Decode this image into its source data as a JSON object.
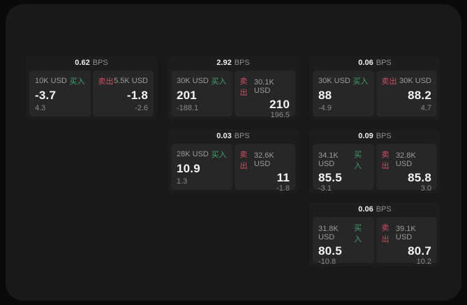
{
  "theme": {
    "page_bg": "#0a0a0a",
    "panel_bg": "#191919",
    "card_bg": "#1d1d1d",
    "tile_bg": "#272727",
    "buy_color": "#3fa169",
    "sell_color": "#cb5065"
  },
  "labels": {
    "bps_unit": "BPS",
    "buy": "买入",
    "sell": "卖出"
  },
  "cards": [
    {
      "bps": "0.62",
      "col": 0,
      "row": 0,
      "buy": {
        "amount": "10K USD",
        "price": "-3.7",
        "delta": "4.3"
      },
      "sell": {
        "amount": "5.5K USD",
        "price": "-1.8",
        "delta": "-2.6"
      }
    },
    {
      "bps": "2.92",
      "col": 1,
      "row": 0,
      "buy": {
        "amount": "30K USD",
        "price": "201",
        "delta": "-188.1"
      },
      "sell": {
        "amount": "30.1K USD",
        "price": "210",
        "delta": "196.5"
      }
    },
    {
      "bps": "0.06",
      "col": 2,
      "row": 0,
      "buy": {
        "amount": "30K USD",
        "price": "88",
        "delta": "-4.9"
      },
      "sell": {
        "amount": "30K USD",
        "price": "88.2",
        "delta": "4.7"
      }
    },
    {
      "bps": "0.03",
      "col": 1,
      "row": 1,
      "buy": {
        "amount": "28K USD",
        "price": "10.9",
        "delta": "1.3"
      },
      "sell": {
        "amount": "32.6K USD",
        "price": "11",
        "delta": "-1.8"
      }
    },
    {
      "bps": "0.09",
      "col": 2,
      "row": 1,
      "buy": {
        "amount": "34.1K USD",
        "price": "85.5",
        "delta": "-3.1"
      },
      "sell": {
        "amount": "32.8K USD",
        "price": "85.8",
        "delta": "3.0"
      }
    },
    {
      "bps": "0.06",
      "col": 2,
      "row": 2,
      "buy": {
        "amount": "31.8K USD",
        "price": "80.5",
        "delta": "-10.8"
      },
      "sell": {
        "amount": "39.1K USD",
        "price": "80.7",
        "delta": "10.2"
      }
    }
  ]
}
